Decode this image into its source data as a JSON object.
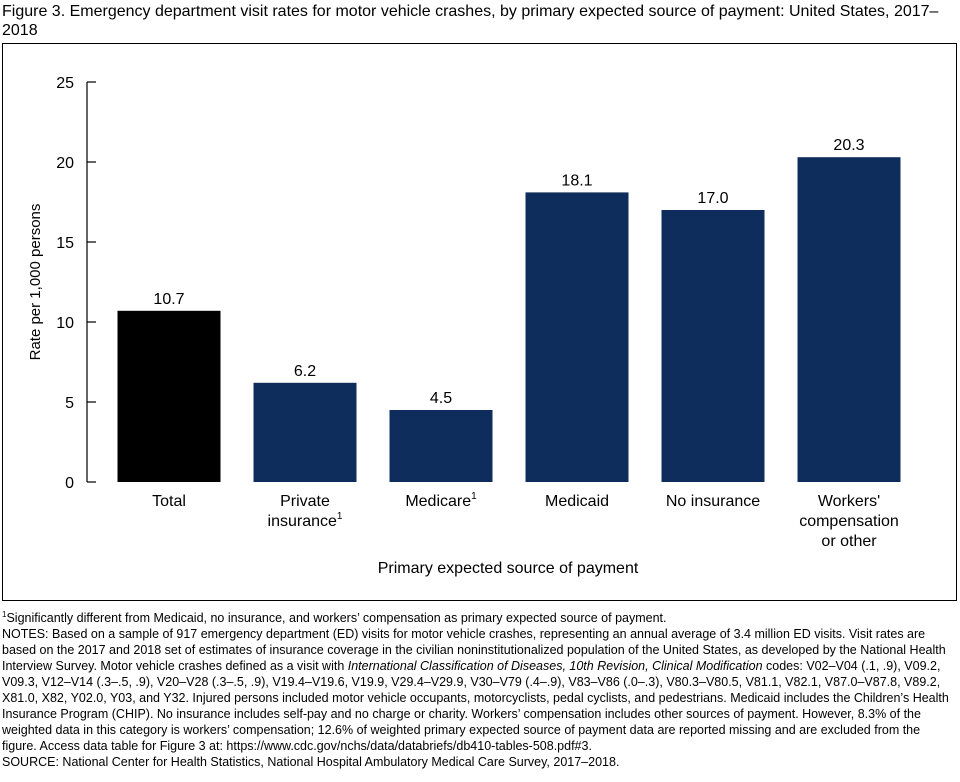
{
  "figure": {
    "title": "Figure 3. Emergency department visit rates for motor vehicle crashes, by primary expected source of payment: United States, 2017–2018"
  },
  "colors": {
    "total_bar": "#000000",
    "category_bar": "#0e2c5c"
  },
  "chart_data": {
    "type": "bar",
    "ylabel": "Rate per 1,000 persons",
    "xlabel": "Primary expected source of payment",
    "ylim": [
      0,
      25
    ],
    "yticks": [
      0,
      5,
      10,
      15,
      20,
      25
    ],
    "grid": false,
    "legend": "none",
    "categories": [
      {
        "lines": [
          "Total"
        ],
        "sup": ""
      },
      {
        "lines": [
          "Private",
          "insurance"
        ],
        "sup": "1"
      },
      {
        "lines": [
          "Medicare"
        ],
        "sup": "1"
      },
      {
        "lines": [
          "Medicaid"
        ],
        "sup": ""
      },
      {
        "lines": [
          "No insurance"
        ],
        "sup": ""
      },
      {
        "lines": [
          "Workers'",
          "compensation",
          "or other"
        ],
        "sup": ""
      }
    ],
    "values": [
      10.7,
      6.2,
      4.5,
      18.1,
      17.0,
      20.3
    ],
    "value_labels": [
      "10.7",
      "6.2",
      "4.5",
      "18.1",
      "17.0",
      "20.3"
    ]
  },
  "notes": {
    "footnote_marker": "1",
    "footnote": "Significantly different from Medicaid, no insurance, and workers’ compensation as primary expected source of payment.",
    "notes_part1": "NOTES: Based on a sample of 917 emergency department (ED) visits for motor vehicle crashes, representing an annual average of 3.4 million ED visits. Visit rates are based on the 2017 and 2018 set of estimates of insurance coverage in the civilian noninstitutionalized population of the United States, as developed by the National Health Interview Survey. Motor vehicle crashes defined as a visit with ",
    "notes_italic": "International Classification of Diseases, 10th Revision, Clinical Modification",
    "notes_part2": " codes: V02–V04 (.1, .9), V09.2, V09.3, V12–V14 (.3–.5, .9), V20–V28 (.3–.5, .9), V19.4–V19.6, V19.9, V29.4–V29.9, V30–V79 (.4–.9), V83–V86 (.0–.3), V80.3–V80.5, V81.1, V82.1, V87.0–V87.8, V89.2, X81.0, X82, Y02.0, Y03, and Y32. Injured persons included motor vehicle occupants, motorcyclists, pedal cyclists, and pedestrians. Medicaid includes the Children’s Health Insurance Program (CHIP). No insurance includes self-pay and no charge or charity. Workers’ compensation includes other sources of payment. However, 8.3% of the weighted data in this category is workers’ compensation; 12.6% of weighted primary expected source of payment data are reported missing and are excluded from the figure. Access data table for Figure 3 at: https://www.cdc.gov/nchs/data/databriefs/db410-tables-508.pdf#3.",
    "source": "SOURCE: National Center for Health Statistics, National Hospital Ambulatory Medical Care Survey, 2017–2018."
  }
}
